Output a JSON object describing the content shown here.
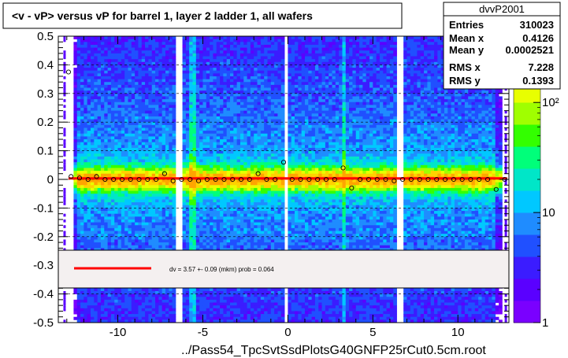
{
  "chart_data": {
    "type": "heatmap",
    "title": "<v - vP>       versus   vP for barrel 1, layer 2 ladder 1, all wafers",
    "xlabel": "../Pass54_TpcSvtSsdPlotsG40GNFP25rCut0.5cm.root",
    "ylabel": "",
    "xlim": [
      -13.5,
      13
    ],
    "ylim": [
      -0.5,
      0.5
    ],
    "x_ticks": [
      -10,
      -5,
      0,
      5,
      10
    ],
    "x_tick_labels": [
      "-10",
      "-5",
      "0",
      "5",
      "10"
    ],
    "y_ticks": [
      -0.5,
      -0.4,
      -0.3,
      -0.2,
      -0.1,
      0,
      0.1,
      0.2,
      0.3,
      0.4,
      0.5
    ],
    "y_tick_labels": [
      "-0.5",
      "-0.4",
      "-0.3",
      "-0.2",
      "-0.1",
      "0",
      "0.1",
      "0.2",
      "0.3",
      "0.4",
      "0.5"
    ],
    "color_scale": {
      "type": "log",
      "tick_labels": [
        "1",
        "10",
        "10²"
      ],
      "tick_values": [
        1,
        10,
        100
      ],
      "colors": [
        "#7a00ff",
        "#5a00ff",
        "#3b1cff",
        "#2050ff",
        "#1f8cff",
        "#00c8ff",
        "#00e6c8",
        "#00ff7a",
        "#33ff00",
        "#a0ff00",
        "#e8ff00",
        "#ffd200",
        "#ffa500"
      ]
    },
    "stats": {
      "name": "dvvP2001",
      "rows": [
        {
          "label": "Entries",
          "value": "310023"
        },
        {
          "label": "Mean x",
          "value": "0.4126"
        },
        {
          "label": "Mean y",
          "value": "0.0002521"
        },
        {
          "label": "RMS x",
          "value": "7.228"
        },
        {
          "label": "RMS y",
          "value": "0.1393"
        }
      ]
    },
    "fit": {
      "legend_text": "dv =     3.57 +-  0.09 (mkm) prob = 0.064",
      "value": 0.00357,
      "color": "#ff0000"
    },
    "profile_points": {
      "x": [
        -12.75,
        -12.25,
        -11.75,
        -11.25,
        -10.75,
        -10.25,
        -9.75,
        -9.25,
        -8.75,
        -8.25,
        -7.75,
        -7.25,
        -6.75,
        -6.25,
        -5.75,
        -5.25,
        -4.75,
        -4.25,
        -3.75,
        -3.25,
        -2.75,
        -2.25,
        -1.75,
        -1.25,
        -0.75,
        -0.25,
        0.25,
        0.75,
        1.25,
        1.75,
        2.25,
        2.75,
        3.25,
        3.75,
        4.25,
        4.75,
        5.25,
        5.75,
        6.25,
        6.75,
        7.25,
        7.75,
        8.25,
        8.75,
        9.25,
        9.75,
        10.25,
        10.75,
        11.25,
        11.75,
        12.25,
        12.75
      ],
      "y": [
        0.01,
        0.005,
        0.0,
        0.01,
        0.0,
        0.0,
        0.0,
        0.0,
        0.0,
        0.0,
        0.0,
        0.02,
        -0.005,
        0.0,
        0.0,
        -0.005,
        0.0,
        0.0,
        0.0,
        0.0,
        0.0,
        0.0,
        0.02,
        0.0,
        0.0,
        0.06,
        0.0,
        0.0,
        0.0,
        0.0,
        0.0,
        0.0,
        0.04,
        -0.03,
        0.0,
        0.0,
        0.0,
        0.0,
        -0.005,
        0.0,
        0.0,
        0.0,
        0.0,
        0.0,
        0.0,
        0.0,
        0.0,
        0.0,
        0.0,
        0.0,
        -0.035,
        0.0
      ],
      "outlier": {
        "x": -12.9,
        "y": 0.375
      }
    },
    "empty_columns_x": [
      -6.4,
      -0.1,
      6.6
    ],
    "bright_columns_x": [
      3.3,
      -5.6
    ]
  }
}
